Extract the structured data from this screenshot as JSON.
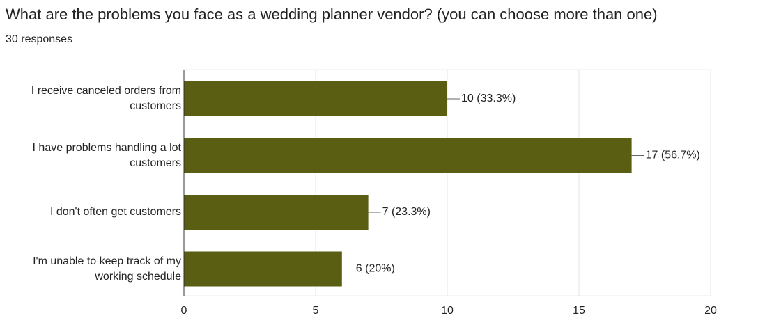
{
  "chart_data": {
    "type": "bar",
    "orientation": "horizontal",
    "title": "What are the problems you face as a wedding planner vendor? (you can choose more than one)",
    "subtitle": "30 responses",
    "categories": [
      "I receive canceled orders from customers",
      "I have problems handling a lot customers",
      "I don't often get customers",
      "I'm unable to keep track of my working schedule"
    ],
    "values": [
      10,
      17,
      7,
      6
    ],
    "value_labels": [
      "10 (33.3%)",
      "17 (56.7%)",
      "7 (23.3%)",
      "6 (20%)"
    ],
    "color": "#5a5e12",
    "xlim": [
      0,
      20
    ],
    "xticks": [
      0,
      5,
      10,
      15,
      20
    ],
    "grid": true
  }
}
